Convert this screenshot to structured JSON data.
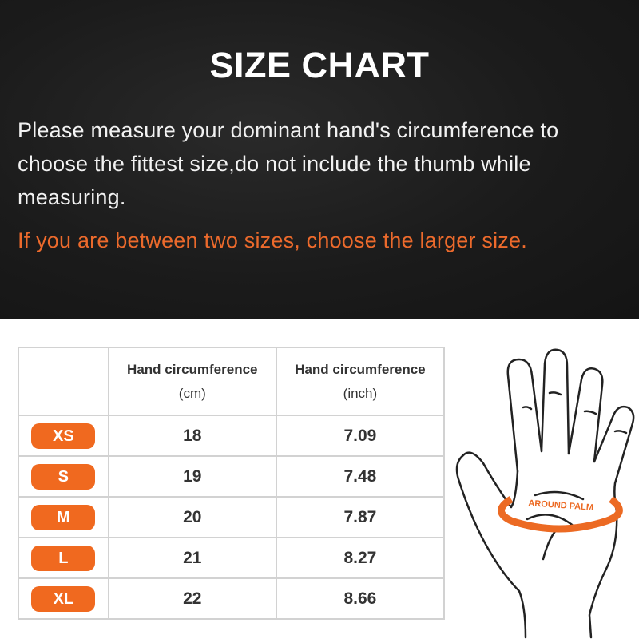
{
  "header": {
    "title": "SIZE CHART",
    "description": "Please measure your dominant hand's circumference to choose the fittest size,do not include the thumb while measuring.",
    "note": "If you are between two sizes, choose the larger size."
  },
  "table": {
    "columns": [
      {
        "label": "Hand circumference",
        "unit": "(cm)"
      },
      {
        "label": "Hand circumference",
        "unit": "(inch)"
      }
    ],
    "rows": [
      {
        "size": "XS",
        "cm": "18",
        "inch": "7.09"
      },
      {
        "size": "S",
        "cm": "19",
        "inch": "7.48"
      },
      {
        "size": "M",
        "cm": "20",
        "inch": "7.87"
      },
      {
        "size": "L",
        "cm": "21",
        "inch": "8.27"
      },
      {
        "size": "XL",
        "cm": "22",
        "inch": "8.66"
      }
    ]
  },
  "illustration": {
    "label": "AROUND PALM"
  },
  "colors": {
    "accent": "#f0691f",
    "background_top": "#1b1b1b"
  }
}
